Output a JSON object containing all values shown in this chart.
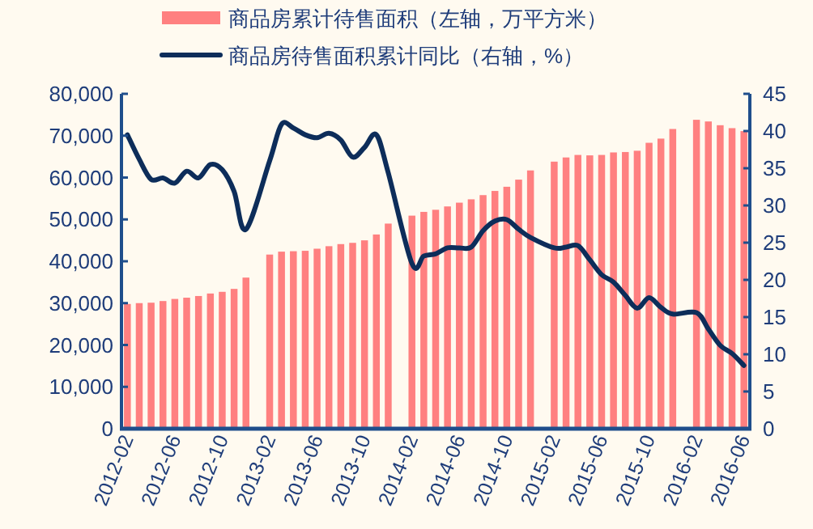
{
  "chart_data": {
    "type": "bar",
    "categories": [
      "2012-02",
      null,
      null,
      null,
      "2012-06",
      null,
      null,
      null,
      "2012-10",
      null,
      null,
      null,
      "2013-02",
      null,
      null,
      null,
      "2013-06",
      null,
      null,
      null,
      "2013-10",
      null,
      null,
      null,
      "2014-02",
      null,
      null,
      null,
      "2014-06",
      null,
      null,
      null,
      "2014-10",
      null,
      null,
      null,
      "2015-02",
      null,
      null,
      null,
      "2015-06",
      null,
      null,
      null,
      "2015-10",
      null,
      null,
      null,
      "2016-02",
      null,
      null,
      null,
      "2016-06"
    ],
    "series": [
      {
        "name": "商品房累计待售面积（左轴，万平方米）",
        "color": "#ff8080",
        "values": [
          29800,
          30000,
          30100,
          30500,
          31000,
          31300,
          31700,
          32300,
          32700,
          33400,
          36100,
          null,
          41600,
          42300,
          42400,
          42500,
          43000,
          43600,
          44100,
          44400,
          45000,
          46400,
          49000,
          null,
          50900,
          51800,
          52300,
          53100,
          54000,
          54800,
          55800,
          56800,
          57800,
          59500,
          61700,
          null,
          63800,
          64800,
          65400,
          65300,
          65400,
          66000,
          66100,
          66400,
          68300,
          69300,
          71600,
          null,
          73800,
          73400,
          72500,
          71800,
          71100
        ]
      },
      {
        "name": "商品房待售面积累计同比（右轴，%）",
        "type": "line",
        "axis": "y2",
        "color": "#0d2d5a",
        "values": [
          39.5,
          36.2,
          33.5,
          33.7,
          33.0,
          34.6,
          33.7,
          35.5,
          34.8,
          31.9,
          26.8,
          null,
          36.0,
          40.9,
          40.4,
          39.5,
          39.1,
          39.7,
          38.8,
          36.5,
          37.8,
          39.5,
          34.4,
          null,
          22.2,
          23.2,
          23.5,
          24.3,
          24.3,
          24.4,
          26.6,
          27.9,
          28.1,
          26.8,
          25.7,
          null,
          24.3,
          24.4,
          24.6,
          22.7,
          20.7,
          19.7,
          17.9,
          16.2,
          17.6,
          16.3,
          15.4,
          null,
          15.6,
          13.4,
          11.2,
          10.1,
          8.5
        ]
      }
    ],
    "ylim": [
      0,
      80000
    ],
    "yticks": [
      {
        "value": 0,
        "label": "0"
      },
      {
        "value": 10000,
        "label": "10,000"
      },
      {
        "value": 20000,
        "label": "20,000"
      },
      {
        "value": 30000,
        "label": "30,000"
      },
      {
        "value": 40000,
        "label": "40,000"
      },
      {
        "value": 50000,
        "label": "50,000"
      },
      {
        "value": 60000,
        "label": "60,000"
      },
      {
        "value": 70000,
        "label": "70,000"
      },
      {
        "value": 80000,
        "label": "80,000"
      }
    ],
    "y2lim": [
      0,
      45
    ],
    "y2ticks": [
      0,
      5,
      10,
      15,
      20,
      25,
      30,
      35,
      40,
      45
    ],
    "legend": "top",
    "grid": false
  }
}
